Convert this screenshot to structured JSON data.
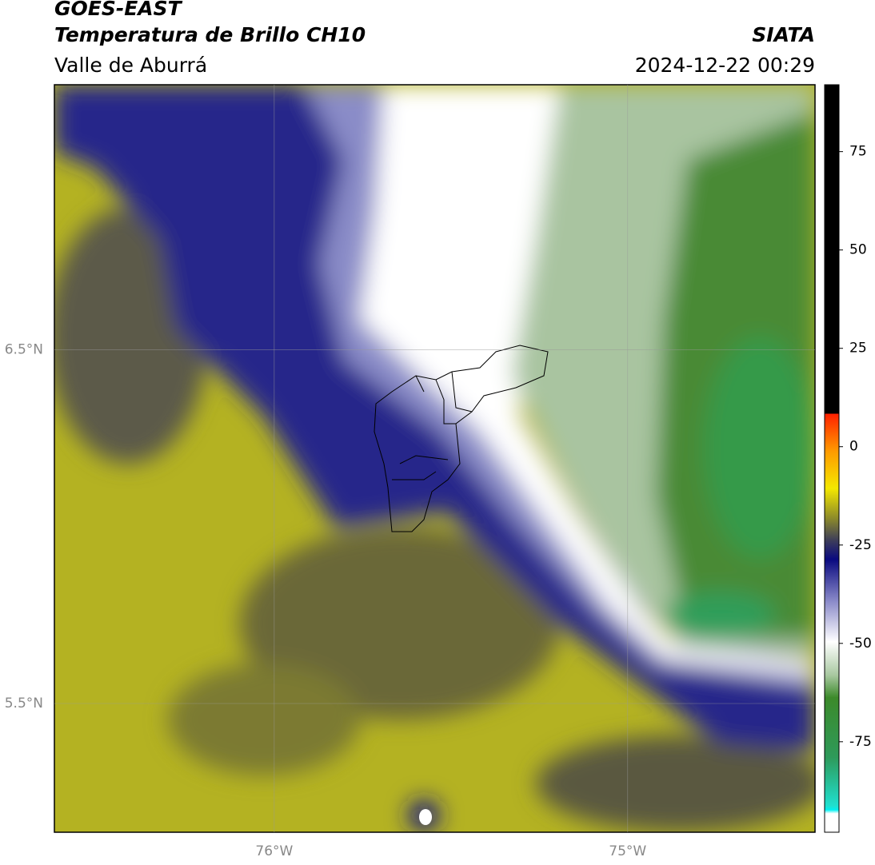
{
  "header": {
    "title": "GOES-EAST",
    "subtitle": "Temperatura de Brillo CH10",
    "region": "Valle de Aburrá",
    "agency": "SIATA",
    "datetime": "2024-12-22 00:29"
  },
  "map": {
    "xlim": [
      -76.622,
      -74.47
    ],
    "ylim": [
      5.136,
      7.25
    ],
    "xticks": [
      {
        "value": -76,
        "label": "76°W"
      },
      {
        "value": -75,
        "label": "75°W"
      }
    ],
    "yticks": [
      {
        "value": 6.5,
        "label": "6.5°N"
      },
      {
        "value": 5.5,
        "label": "5.5°N"
      }
    ]
  },
  "colorbar": {
    "lim": [
      -98,
      92
    ],
    "ticks": [
      75,
      50,
      25,
      0,
      -25,
      -50,
      -75
    ]
  }
}
